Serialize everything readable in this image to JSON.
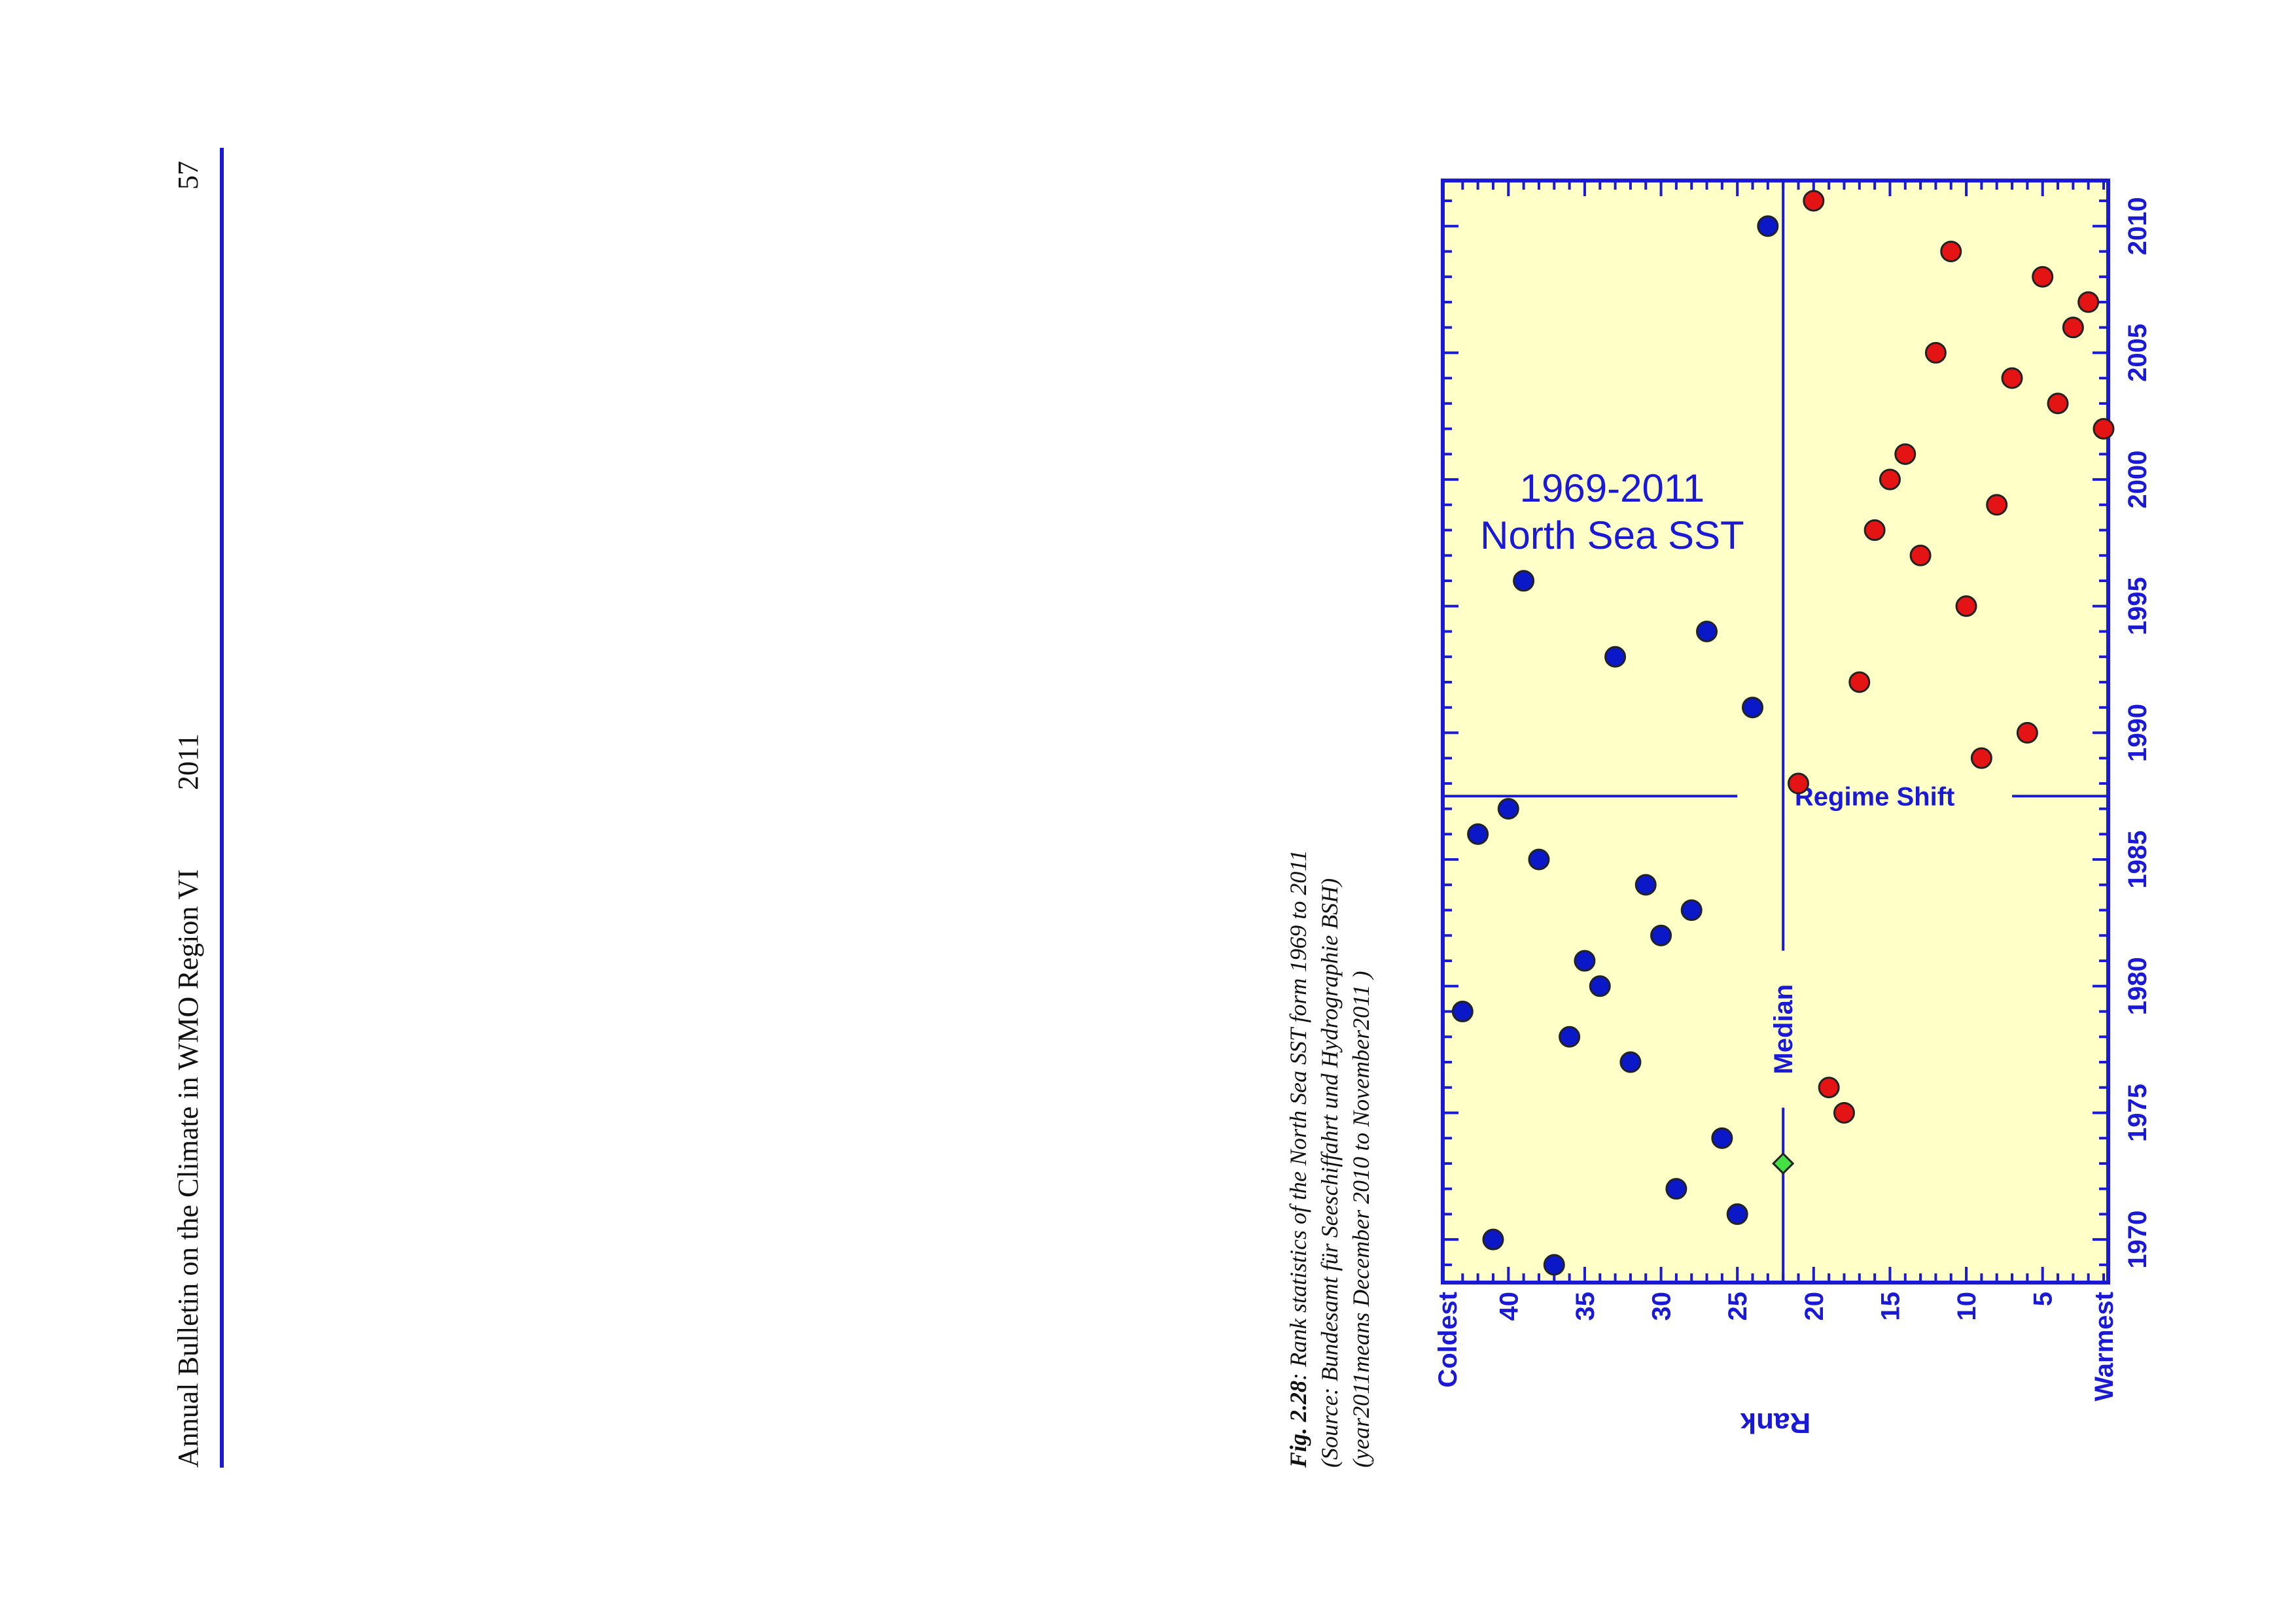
{
  "header": {
    "title": "Annual Bulletin on the Climate in WMO Region VI",
    "year": "2011",
    "page_number": "57"
  },
  "colors": {
    "plot_background": "#FFFFC8",
    "axis": "#1a1ad6",
    "cold_years": "#0A18C8",
    "warm_years": "#E41414",
    "median_year": "#44E044",
    "header_rule": "#1a1ad6"
  },
  "chart_data": {
    "type": "scatter",
    "title": "North Sea SST\n1969-2011",
    "xlabel": "",
    "ylabel": "Rank",
    "xlim": [
      1968.3,
      2011.8
    ],
    "ylim": [
      0.7,
      44.3
    ],
    "y_inverted": true,
    "x_ticks": [
      1970,
      1975,
      1980,
      1985,
      1990,
      1995,
      2000,
      2005,
      2010
    ],
    "y_ticks": [
      5,
      10,
      15,
      20,
      25,
      30,
      35,
      40
    ],
    "y_tick_labels_extra": {
      "top": "Coldest",
      "bottom": "Warmest"
    },
    "grid": false,
    "reference_lines": [
      {
        "orientation": "horizontal",
        "y": 22,
        "label": "Median"
      },
      {
        "orientation": "vertical",
        "x": 1987.5,
        "label": "Regime Shift"
      }
    ],
    "series": [
      {
        "points": [
          {
            "x": 1969,
            "y": 37
          },
          {
            "x": 1970,
            "y": 41
          },
          {
            "x": 1971,
            "y": 25
          },
          {
            "x": 1972,
            "y": 29
          },
          {
            "x": 1974,
            "y": 26
          },
          {
            "x": 1977,
            "y": 32
          },
          {
            "x": 1978,
            "y": 36
          },
          {
            "x": 1979,
            "y": 43
          },
          {
            "x": 1980,
            "y": 34
          },
          {
            "x": 1981,
            "y": 35
          },
          {
            "x": 1982,
            "y": 30
          },
          {
            "x": 1983,
            "y": 28
          },
          {
            "x": 1984,
            "y": 31
          },
          {
            "x": 1985,
            "y": 38
          },
          {
            "x": 1986,
            "y": 42
          },
          {
            "x": 1987,
            "y": 40
          },
          {
            "x": 1991,
            "y": 24
          },
          {
            "x": 1993,
            "y": 33
          },
          {
            "x": 1994,
            "y": 27
          },
          {
            "x": 1996,
            "y": 39
          },
          {
            "x": 2010,
            "y": 23
          }
        ]
      },
      {
        "points": [
          {
            "x": 1975,
            "y": 18
          },
          {
            "x": 1976,
            "y": 19
          },
          {
            "x": 1988,
            "y": 21
          },
          {
            "x": 1989,
            "y": 9
          },
          {
            "x": 1990,
            "y": 6
          },
          {
            "x": 1992,
            "y": 17
          },
          {
            "x": 1995,
            "y": 10
          },
          {
            "x": 1997,
            "y": 13
          },
          {
            "x": 1998,
            "y": 16
          },
          {
            "x": 1999,
            "y": 8
          },
          {
            "x": 2000,
            "y": 15
          },
          {
            "x": 2001,
            "y": 14
          },
          {
            "x": 2002,
            "y": 1
          },
          {
            "x": 2003,
            "y": 4
          },
          {
            "x": 2004,
            "y": 7
          },
          {
            "x": 2005,
            "y": 12
          },
          {
            "x": 2006,
            "y": 3
          },
          {
            "x": 2007,
            "y": 2
          },
          {
            "x": 2008,
            "y": 5
          },
          {
            "x": 2009,
            "y": 11
          },
          {
            "x": 2011,
            "y": 20
          }
        ]
      },
      {
        "points": [
          {
            "x": 1973,
            "y": 22
          }
        ]
      }
    ]
  },
  "caption": {
    "label": "Fig. 2.28",
    "text": ": Rank statistics of the North Sea SST form 1969 to 2011",
    "source": "(Source: Bundesamt für Seeschiffahrt und Hydrographie BSH)",
    "note": "(year2011means December 2010 to November2011 )"
  }
}
